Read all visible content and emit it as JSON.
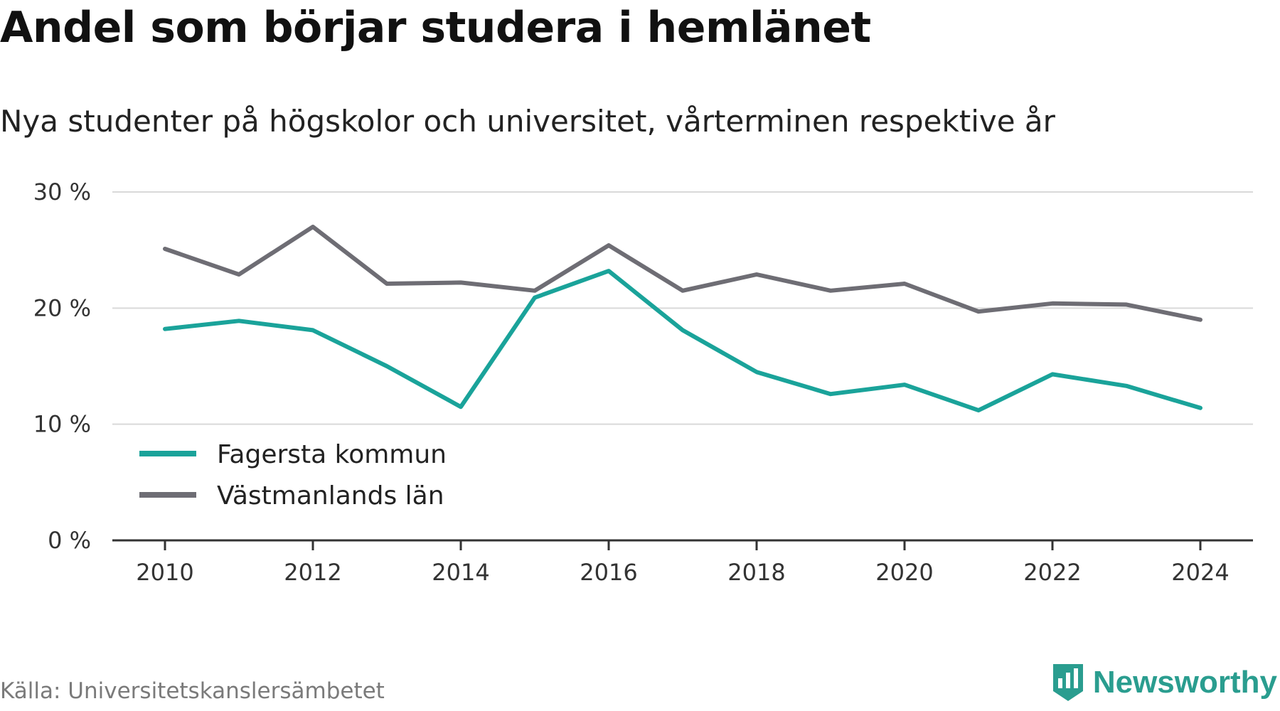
{
  "header": {
    "title": "Andel som börjar studera i hemlänet",
    "subtitle": "Nya studenter på högskolor och universitet, vårterminen respektive år"
  },
  "footer": {
    "source": "Källa: Universitetskanslersämbetet",
    "brand": "Newsworthy",
    "brand_icon": "bar-chart-badge-icon",
    "brand_color": "#2a9d8f"
  },
  "chart_data": {
    "type": "line",
    "title": "Andel som börjar studera i hemlänet",
    "subtitle": "Nya studenter på högskolor och universitet, vårterminen respektive år",
    "xlabel": "",
    "ylabel": "",
    "x": [
      2010,
      2011,
      2012,
      2013,
      2014,
      2015,
      2016,
      2017,
      2018,
      2019,
      2020,
      2021,
      2022,
      2023,
      2024
    ],
    "x_ticks": [
      "2010",
      "2012",
      "2014",
      "2016",
      "2018",
      "2020",
      "2022",
      "2024"
    ],
    "y_ticks": [
      "0 %",
      "10 %",
      "20 %",
      "30 %"
    ],
    "ylim": [
      0,
      30
    ],
    "xlim": [
      2010,
      2024
    ],
    "grid": true,
    "legend_position": "bottom-left",
    "series": [
      {
        "name": "Fagersta kommun",
        "color": "#1aa39a",
        "values": [
          18.2,
          18.9,
          18.1,
          15.0,
          11.5,
          20.9,
          23.2,
          18.1,
          14.5,
          12.6,
          13.4,
          11.2,
          14.3,
          13.3,
          11.4
        ]
      },
      {
        "name": "Västmanlands län",
        "color": "#6e6d74",
        "values": [
          25.1,
          22.9,
          27.0,
          22.1,
          22.2,
          21.5,
          25.4,
          21.5,
          22.9,
          21.5,
          22.1,
          19.7,
          20.4,
          20.3,
          19.0
        ]
      }
    ]
  }
}
